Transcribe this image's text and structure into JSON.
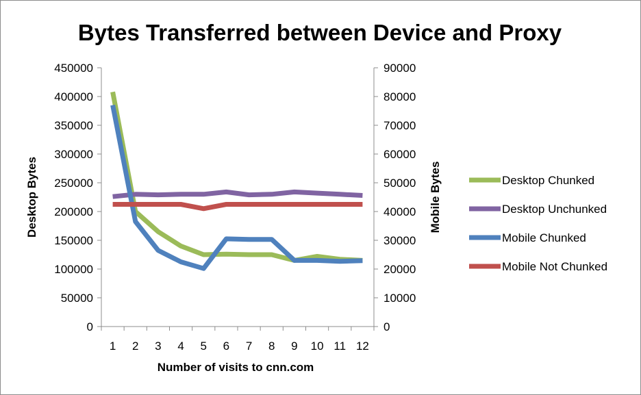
{
  "chart_data": {
    "type": "line",
    "title": "Bytes Transferred between Device and Proxy",
    "xlabel": "Number of visits to cnn.com",
    "ylabel_left": "Desktop Bytes",
    "ylabel_right": "Mobile Bytes",
    "categories": [
      "1",
      "2",
      "3",
      "4",
      "5",
      "6",
      "7",
      "8",
      "9",
      "10",
      "11",
      "12"
    ],
    "ylim_left": [
      0,
      450000
    ],
    "ylim_right": [
      0,
      90000
    ],
    "yticks_left": [
      "0",
      "50000",
      "100000",
      "150000",
      "200000",
      "250000",
      "300000",
      "350000",
      "400000",
      "450000"
    ],
    "yticks_right": [
      "0",
      "10000",
      "20000",
      "30000",
      "40000",
      "50000",
      "60000",
      "70000",
      "80000",
      "90000"
    ],
    "grid": false,
    "legend_position": "right",
    "series": [
      {
        "name": "Desktop Chunked",
        "axis": "left",
        "color": "#9bbb59",
        "values": [
          408000,
          200000,
          165000,
          140000,
          125000,
          126000,
          125000,
          125000,
          115000,
          122000,
          117000,
          115000
        ]
      },
      {
        "name": "Desktop Unchunked",
        "axis": "left",
        "color": "#8064a2",
        "values": [
          226000,
          230000,
          229000,
          230000,
          230000,
          234000,
          229000,
          230000,
          234000,
          232000,
          230000,
          228000
        ]
      },
      {
        "name": "Mobile Chunked",
        "axis": "right",
        "color": "#4f81bd",
        "values": [
          77000,
          36500,
          26500,
          22500,
          20200,
          30500,
          30300,
          30300,
          23000,
          23000,
          22700,
          22900
        ]
      },
      {
        "name": "Mobile Not Chunked",
        "axis": "right",
        "color": "#c0504d",
        "values": [
          42500,
          42500,
          42500,
          42500,
          41000,
          42500,
          42500,
          42500,
          42500,
          42500,
          42500,
          42500
        ]
      }
    ]
  }
}
